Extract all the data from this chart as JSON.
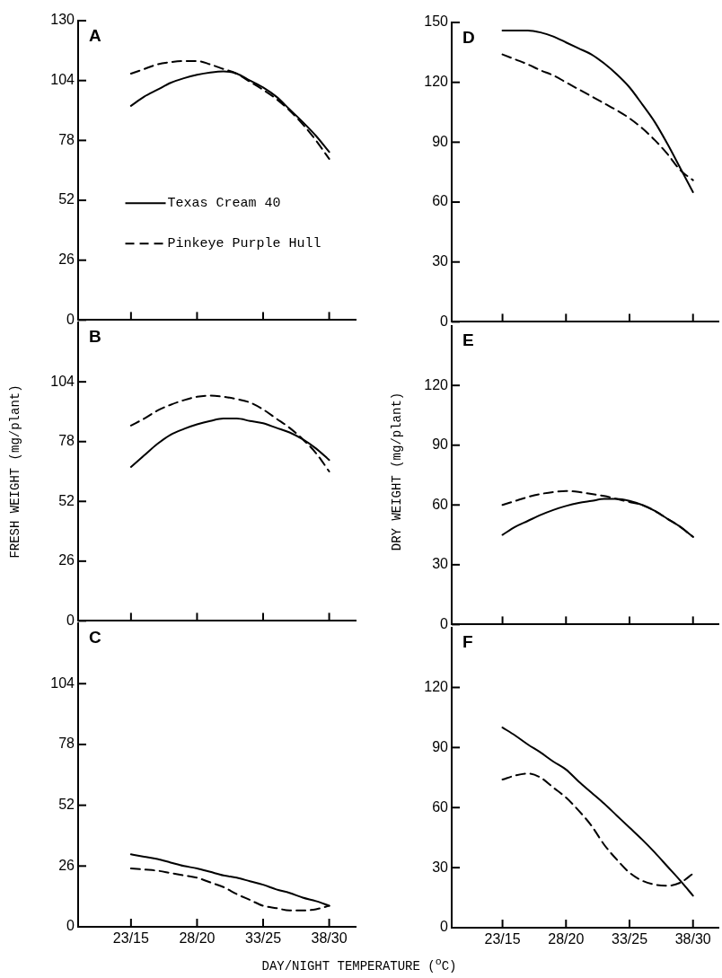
{
  "chart_data": [
    {
      "type": "line",
      "title": "A",
      "categories": [
        null,
        null,
        null,
        null,
        null,
        null,
        null,
        null,
        null,
        null,
        null,
        null,
        null,
        null,
        null,
        null,
        null,
        null,
        null,
        null,
        null,
        null
      ],
      "ylim": [
        0,
        130
      ],
      "yticks": [
        0,
        26,
        52,
        78,
        104,
        130
      ],
      "legend": "bottom",
      "series": [
        {
          "name": "Texas Cream 40",
          "color": "#000000",
          "line_style": "solid",
          "values": [
            null,
            null,
            null,
            null,
            93,
            97,
            100,
            103,
            105,
            106.5,
            107.5,
            108,
            107,
            104,
            101,
            97,
            91.5,
            86,
            80,
            73,
            null,
            null
          ]
        },
        {
          "name": "Pinkeye Purple Hull",
          "color": "#000000",
          "line_style": "dashed",
          "values": [
            null,
            null,
            null,
            null,
            107,
            109,
            111,
            112,
            112.5,
            112.5,
            111,
            109,
            107,
            103.5,
            100,
            96,
            91,
            85,
            78,
            70,
            null,
            null
          ]
        }
      ]
    },
    {
      "type": "line",
      "title": "D",
      "categories": [
        null,
        null,
        null,
        null,
        null,
        null,
        null,
        null,
        null,
        null,
        null,
        null,
        null,
        null,
        null,
        null,
        null,
        null,
        null,
        null,
        null,
        null
      ],
      "ylim": [
        0,
        150
      ],
      "yticks": [
        0,
        30,
        60,
        90,
        120,
        150
      ],
      "series": [
        {
          "color": "#000000",
          "line_style": "solid",
          "values": [
            null,
            null,
            null,
            null,
            146,
            146,
            146,
            145,
            143,
            140,
            137,
            134,
            129.5,
            124,
            117.5,
            109,
            100,
            89,
            77,
            65,
            null,
            null
          ]
        },
        {
          "color": "#000000",
          "line_style": "dashed",
          "values": [
            null,
            null,
            null,
            null,
            134,
            131.5,
            129,
            126,
            123.5,
            120,
            116.5,
            113,
            109.5,
            106,
            102,
            97,
            91,
            84,
            76,
            71,
            null,
            null
          ]
        }
      ]
    },
    {
      "type": "line",
      "title": "B",
      "ylabel": "FRESH WEIGHT (mg/plant)",
      "categories": [
        null,
        null,
        null,
        null,
        null,
        null,
        null,
        null,
        null,
        null,
        null,
        null,
        null,
        null,
        null,
        null,
        null,
        null,
        null,
        null,
        null,
        null
      ],
      "ylim": [
        0,
        130
      ],
      "yticks": [
        0,
        26,
        52,
        78,
        104
      ],
      "series": [
        {
          "color": "#000000",
          "line_style": "solid",
          "values": [
            null,
            null,
            null,
            null,
            67,
            72,
            77,
            81,
            83.5,
            85.5,
            87,
            88,
            88,
            87,
            86,
            84,
            82,
            79,
            75,
            70,
            null,
            null
          ]
        },
        {
          "color": "#000000",
          "line_style": "dashed",
          "values": [
            null,
            null,
            null,
            null,
            85,
            88,
            91.5,
            94,
            96,
            97.5,
            98,
            97.5,
            96.5,
            95,
            92,
            88,
            84,
            79,
            73,
            65,
            null,
            null
          ]
        }
      ]
    },
    {
      "type": "line",
      "title": "E",
      "ylabel": "DRY WEIGHT (mg/plant)",
      "categories": [
        null,
        null,
        null,
        null,
        null,
        null,
        null,
        null,
        null,
        null,
        null,
        null,
        null,
        null,
        null,
        null,
        null,
        null,
        null,
        null,
        null,
        null
      ],
      "ylim": [
        0,
        150
      ],
      "yticks": [
        0,
        30,
        60,
        90,
        120
      ],
      "series": [
        {
          "color": "#000000",
          "line_style": "solid",
          "values": [
            null,
            null,
            null,
            null,
            45,
            49,
            52,
            55,
            57.5,
            59.5,
            61,
            62,
            63,
            63,
            62,
            60,
            57,
            53,
            49,
            44,
            null,
            null
          ]
        },
        {
          "color": "#000000",
          "line_style": "dashed",
          "values": [
            null,
            null,
            null,
            null,
            60,
            62,
            64,
            65.5,
            66.5,
            67,
            66.5,
            65.5,
            64.5,
            63,
            61.5,
            60,
            57,
            53,
            49,
            44,
            null,
            null
          ]
        }
      ]
    },
    {
      "type": "line",
      "title": "C",
      "xlabel": "DAY/NIGHT TEMPERATURE ($^{o}$C)",
      "categories": [
        null,
        null,
        null,
        null,
        "23/15",
        null,
        null,
        null,
        null,
        "28/20",
        null,
        null,
        null,
        null,
        "33/25",
        null,
        null,
        null,
        null,
        "38/30",
        null,
        null
      ],
      "ylim": [
        0,
        130
      ],
      "yticks": [
        0,
        26,
        52,
        78,
        104
      ],
      "series": [
        {
          "color": "#000000",
          "line_style": "solid",
          "values": [
            null,
            null,
            null,
            null,
            31,
            30,
            29,
            27.5,
            26,
            25,
            23.5,
            22,
            21,
            19.5,
            18,
            16,
            14.5,
            12.5,
            11,
            9,
            null,
            null
          ]
        },
        {
          "color": "#000000",
          "line_style": "dashed",
          "values": [
            null,
            null,
            null,
            null,
            25,
            24.5,
            24,
            23,
            22,
            21,
            19,
            17,
            14,
            11.5,
            9,
            8,
            7,
            7,
            7.5,
            9,
            null,
            null
          ]
        }
      ]
    },
    {
      "type": "line",
      "title": "F",
      "categories": [
        null,
        null,
        null,
        null,
        "23/15",
        null,
        null,
        null,
        null,
        "28/20",
        null,
        null,
        null,
        null,
        "33/25",
        null,
        null,
        null,
        null,
        "38/30",
        null,
        null
      ],
      "ylim": [
        0,
        150
      ],
      "yticks": [
        0,
        30,
        60,
        90,
        120
      ],
      "series": [
        {
          "color": "#000000",
          "line_style": "solid",
          "values": [
            null,
            null,
            null,
            null,
            100,
            96,
            91.5,
            87.5,
            83,
            79,
            73,
            67.5,
            62,
            56,
            50,
            44,
            37.5,
            30.5,
            23.5,
            16,
            null,
            null
          ]
        },
        {
          "color": "#000000",
          "line_style": "dashed",
          "values": [
            null,
            null,
            null,
            null,
            74,
            76,
            77,
            75,
            70,
            65,
            58.5,
            51,
            41.5,
            34,
            27.5,
            23.5,
            21.5,
            21,
            22.5,
            27,
            null,
            null
          ]
        }
      ]
    }
  ]
}
